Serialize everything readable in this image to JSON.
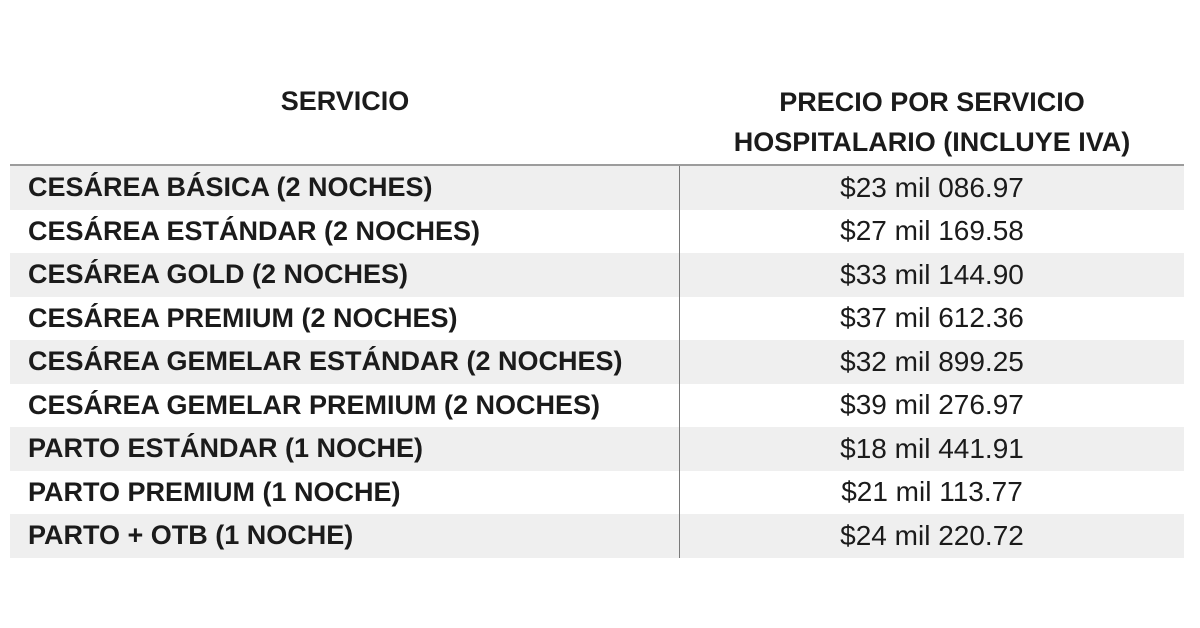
{
  "table": {
    "headers": {
      "service": "SERVICIO",
      "price_line1": "PRECIO POR SERVICIO",
      "price_line2": "HOSPITALARIO (INCLUYE IVA)"
    },
    "rows": [
      {
        "service": "CESÁREA BÁSICA (2 NOCHES)",
        "price": "$23 mil 086.97"
      },
      {
        "service": "CESÁREA ESTÁNDAR (2 NOCHES)",
        "price": "$27 mil 169.58"
      },
      {
        "service": "CESÁREA GOLD (2 NOCHES)",
        "price": "$33 mil 144.90"
      },
      {
        "service": "CESÁREA PREMIUM (2 NOCHES)",
        "price": "$37 mil 612.36"
      },
      {
        "service": "CESÁREA GEMELAR ESTÁNDAR (2 NOCHES)",
        "price": "$32 mil 899.25"
      },
      {
        "service": "CESÁREA GEMELAR PREMIUM (2 NOCHES)",
        "price": "$39 mil 276.97"
      },
      {
        "service": "PARTO ESTÁNDAR (1 NOCHE)",
        "price": "$18 mil 441.91"
      },
      {
        "service": "PARTO PREMIUM (1 NOCHE)",
        "price": "$21 mil 113.77"
      },
      {
        "service": "PARTO + OTB (1 NOCHE)",
        "price": "$24 mil 220.72"
      }
    ]
  }
}
